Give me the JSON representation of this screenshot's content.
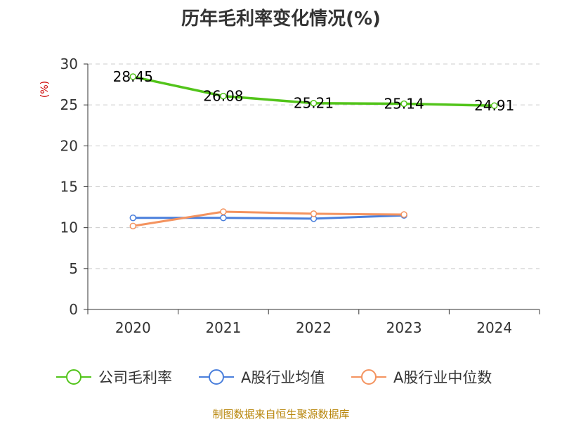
{
  "title": "历年毛利率变化情况(%)",
  "source_note": "制图数据来自恒生聚源数据库",
  "chart_data": {
    "type": "line",
    "title": "历年毛利率变化情况(%)",
    "ylabel": "(%)",
    "xlabel": "",
    "categories": [
      "2020",
      "2021",
      "2022",
      "2023",
      "2024"
    ],
    "ylim": [
      0,
      30
    ],
    "yticks": [
      0,
      5,
      10,
      15,
      20,
      25,
      30
    ],
    "grid": true,
    "legend_position": "bottom",
    "series": [
      {
        "name": "公司毛利率",
        "color": "#52c41a",
        "values": [
          28.45,
          26.08,
          25.21,
          25.14,
          24.91
        ],
        "labels": [
          "28.45",
          "26.08",
          "25.21",
          "25.14",
          "24.91"
        ]
      },
      {
        "name": "A股行业均值",
        "color": "#4a7fdc",
        "values": [
          11.2,
          11.2,
          11.1,
          11.5,
          null
        ]
      },
      {
        "name": "A股行业中位数",
        "color": "#f4935f",
        "values": [
          10.2,
          11.95,
          11.7,
          11.6,
          null
        ]
      }
    ]
  }
}
